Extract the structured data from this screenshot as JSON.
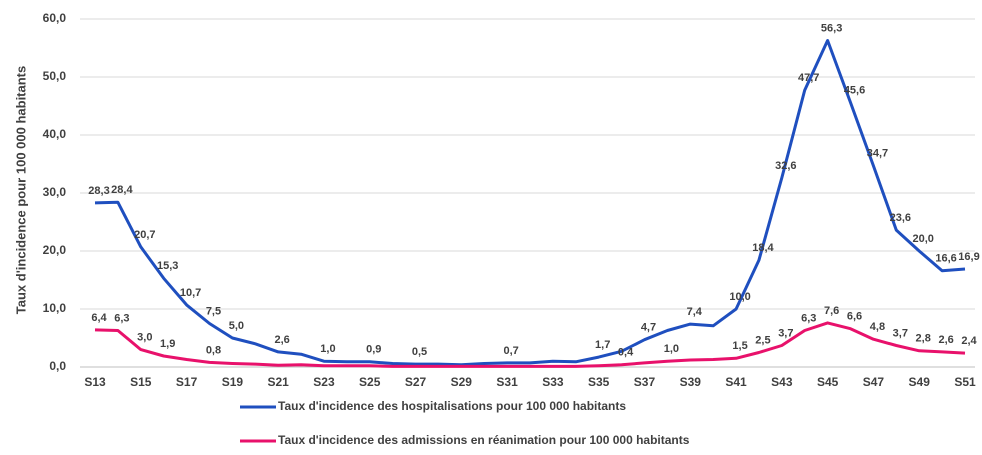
{
  "chart_data": {
    "type": "line",
    "y_label": "Taux d'incidence pour 100 000 habitants",
    "categories": [
      "S13",
      null,
      "S15",
      null,
      "S17",
      null,
      "S19",
      null,
      "S21",
      null,
      "S23",
      null,
      "S25",
      null,
      "S27",
      null,
      "S29",
      null,
      "S31",
      null,
      "S33",
      null,
      "S35",
      null,
      "S37",
      null,
      "S39",
      null,
      "S41",
      null,
      "S43",
      null,
      "S45",
      null,
      "S47",
      null,
      "S49",
      null,
      "S51"
    ],
    "ylim": [
      0,
      60
    ],
    "yticks": [
      {
        "value": 0,
        "label": "0,0"
      },
      {
        "value": 10,
        "label": "10,0"
      },
      {
        "value": 20,
        "label": "20,0"
      },
      {
        "value": 30,
        "label": "30,0"
      },
      {
        "value": 40,
        "label": "40,0"
      },
      {
        "value": 50,
        "label": "50,0"
      },
      {
        "value": 60,
        "label": "60,0"
      }
    ],
    "series": [
      {
        "name": "Taux d'incidence des hospitalisations pour 100 000 habitants",
        "color": "#1f4fbf",
        "values": [
          28.3,
          28.4,
          20.7,
          15.3,
          10.7,
          7.5,
          5.0,
          4.0,
          2.6,
          2.2,
          1.0,
          0.9,
          0.9,
          0.6,
          0.5,
          0.5,
          0.4,
          0.6,
          0.7,
          0.7,
          1.0,
          0.9,
          1.7,
          2.7,
          4.7,
          6.3,
          7.4,
          7.1,
          10.0,
          18.4,
          32.6,
          47.7,
          56.3,
          45.6,
          34.7,
          23.6,
          20.0,
          16.6,
          16.9
        ],
        "value_labels": [
          "28,3",
          "28,4",
          "20,7",
          "15,3",
          "10,7",
          "7,5",
          "5,0",
          null,
          "2,6",
          null,
          "1,0",
          null,
          "0,9",
          null,
          "0,5",
          null,
          null,
          null,
          "0,7",
          null,
          null,
          null,
          "1,7",
          null,
          "4,7",
          null,
          "7,4",
          null,
          "10,0",
          "18,4",
          "32,6",
          "47,7",
          "56,3",
          "45,6",
          "34,7",
          "23,6",
          "20,0",
          "16,6",
          "16,9"
        ]
      },
      {
        "name": "Taux d'incidence des admissions en réanimation pour 100 000 habitants",
        "color": "#e8116b",
        "values": [
          6.4,
          6.3,
          3.0,
          1.9,
          1.3,
          0.8,
          0.6,
          0.5,
          0.3,
          0.4,
          0.2,
          0.2,
          0.2,
          0.1,
          0.1,
          0.1,
          0.1,
          0.1,
          0.1,
          0.1,
          0.1,
          0.1,
          0.2,
          0.4,
          0.7,
          1.0,
          1.2,
          1.3,
          1.5,
          2.5,
          3.7,
          6.3,
          7.6,
          6.6,
          4.8,
          3.7,
          2.8,
          2.6,
          2.4
        ],
        "value_labels": [
          "6,4",
          "6,3",
          "3,0",
          "1,9",
          null,
          "0,8",
          null,
          null,
          null,
          null,
          null,
          null,
          null,
          null,
          null,
          null,
          null,
          null,
          null,
          null,
          null,
          null,
          null,
          "0,4",
          null,
          "1,0",
          null,
          null,
          "1,5",
          "2,5",
          "3,7",
          "6,3",
          "7,6",
          "6,6",
          "4,8",
          "3,7",
          "2,8",
          "2,6",
          "2,4"
        ]
      }
    ]
  }
}
